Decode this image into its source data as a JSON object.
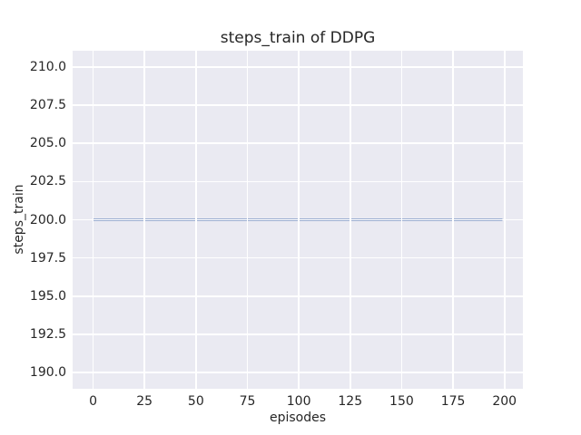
{
  "chart_data": {
    "type": "line",
    "title": "steps_train of DDPG",
    "xlabel": "episodes",
    "ylabel": "steps_train",
    "x_ticks": [
      0,
      25,
      50,
      75,
      100,
      125,
      150,
      175,
      200
    ],
    "x_tick_labels": [
      "0",
      "25",
      "50",
      "75",
      "100",
      "125",
      "150",
      "175",
      "200"
    ],
    "y_ticks": [
      190.0,
      192.5,
      195.0,
      197.5,
      200.0,
      202.5,
      205.0,
      207.5,
      210.0
    ],
    "y_tick_labels": [
      "190.0",
      "192.5",
      "195.0",
      "197.5",
      "200.0",
      "202.5",
      "205.0",
      "207.5",
      "210.0"
    ],
    "xlim": [
      -9.95,
      208.95
    ],
    "ylim": [
      188.93,
      211.07
    ],
    "grid": true,
    "legend_visible": false,
    "plot_bg_color": "#eaeaf2",
    "grid_color": "#ffffff",
    "text_color": "#262626",
    "line_width": 2,
    "series": [
      {
        "name": "steps_train",
        "color": "#4c72b0",
        "x": [
          0,
          199
        ],
        "y": [
          200,
          200
        ]
      }
    ]
  }
}
